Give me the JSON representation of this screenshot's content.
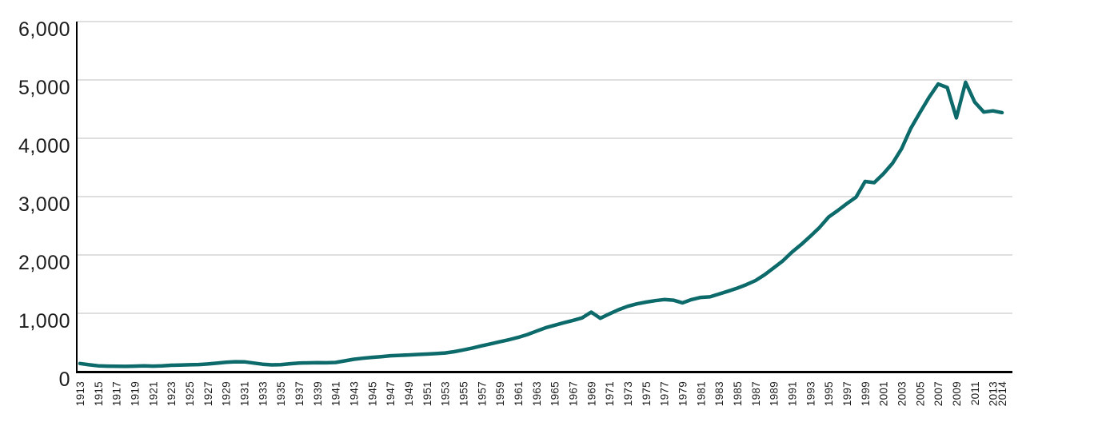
{
  "chart_data": {
    "type": "line",
    "x": [
      1913,
      1914,
      1915,
      1916,
      1917,
      1918,
      1919,
      1920,
      1921,
      1922,
      1923,
      1924,
      1925,
      1926,
      1927,
      1928,
      1929,
      1930,
      1931,
      1932,
      1933,
      1934,
      1935,
      1936,
      1937,
      1938,
      1939,
      1940,
      1941,
      1942,
      1943,
      1944,
      1945,
      1946,
      1947,
      1948,
      1949,
      1950,
      1951,
      1952,
      1953,
      1954,
      1955,
      1956,
      1957,
      1958,
      1959,
      1960,
      1961,
      1962,
      1963,
      1964,
      1965,
      1966,
      1967,
      1968,
      1969,
      1970,
      1971,
      1972,
      1973,
      1974,
      1975,
      1976,
      1977,
      1978,
      1979,
      1980,
      1981,
      1982,
      1983,
      1984,
      1985,
      1986,
      1987,
      1988,
      1989,
      1990,
      1991,
      1992,
      1993,
      1994,
      1995,
      1996,
      1997,
      1998,
      1999,
      2000,
      2001,
      2002,
      2003,
      2004,
      2005,
      2006,
      2007,
      2008,
      2009,
      2010,
      2011,
      2012,
      2013,
      2014
    ],
    "values": [
      140,
      118,
      100,
      95,
      92,
      90,
      94,
      100,
      95,
      100,
      110,
      113,
      118,
      122,
      132,
      145,
      160,
      170,
      168,
      148,
      128,
      116,
      120,
      136,
      148,
      151,
      153,
      152,
      158,
      185,
      212,
      230,
      245,
      258,
      272,
      280,
      286,
      294,
      302,
      310,
      320,
      342,
      372,
      406,
      442,
      477,
      512,
      548,
      588,
      636,
      695,
      752,
      796,
      838,
      878,
      922,
      1020,
      915,
      990,
      1062,
      1120,
      1162,
      1192,
      1216,
      1235,
      1225,
      1180,
      1235,
      1272,
      1282,
      1330,
      1380,
      1432,
      1492,
      1562,
      1662,
      1780,
      1900,
      2050,
      2180,
      2320,
      2470,
      2650,
      2760,
      2880,
      2990,
      3260,
      3240,
      3390,
      3570,
      3820,
      4170,
      4440,
      4700,
      4930,
      4870,
      4350,
      4960,
      4620,
      4450,
      4470,
      4440
    ],
    "ylim": [
      0,
      6000
    ],
    "y_ticks": [
      {
        "value": 0,
        "label": "0"
      },
      {
        "value": 1000,
        "label": "1,000"
      },
      {
        "value": 2000,
        "label": "2,000"
      },
      {
        "value": 3000,
        "label": "3,000"
      },
      {
        "value": 4000,
        "label": "4,000"
      },
      {
        "value": 5000,
        "label": "5,000"
      },
      {
        "value": 6000,
        "label": "6,000"
      }
    ],
    "x_tick_years": [
      1913,
      1915,
      1917,
      1919,
      1921,
      1923,
      1925,
      1927,
      1929,
      1931,
      1933,
      1935,
      1937,
      1939,
      1941,
      1943,
      1945,
      1947,
      1949,
      1951,
      1953,
      1955,
      1957,
      1959,
      1961,
      1963,
      1965,
      1967,
      1969,
      1971,
      1973,
      1975,
      1977,
      1979,
      1981,
      1983,
      1985,
      1987,
      1989,
      1991,
      1993,
      1995,
      1997,
      1999,
      2001,
      2003,
      2005,
      2007,
      2009,
      2011,
      2013,
      2014
    ],
    "grid": "horizontal",
    "legend": "none",
    "colors": {
      "line": "#0d6a6b",
      "gridline": "#cccccc",
      "axis": "#000000",
      "tick_text": "#1c1c1c",
      "background": "#ffffff"
    }
  }
}
